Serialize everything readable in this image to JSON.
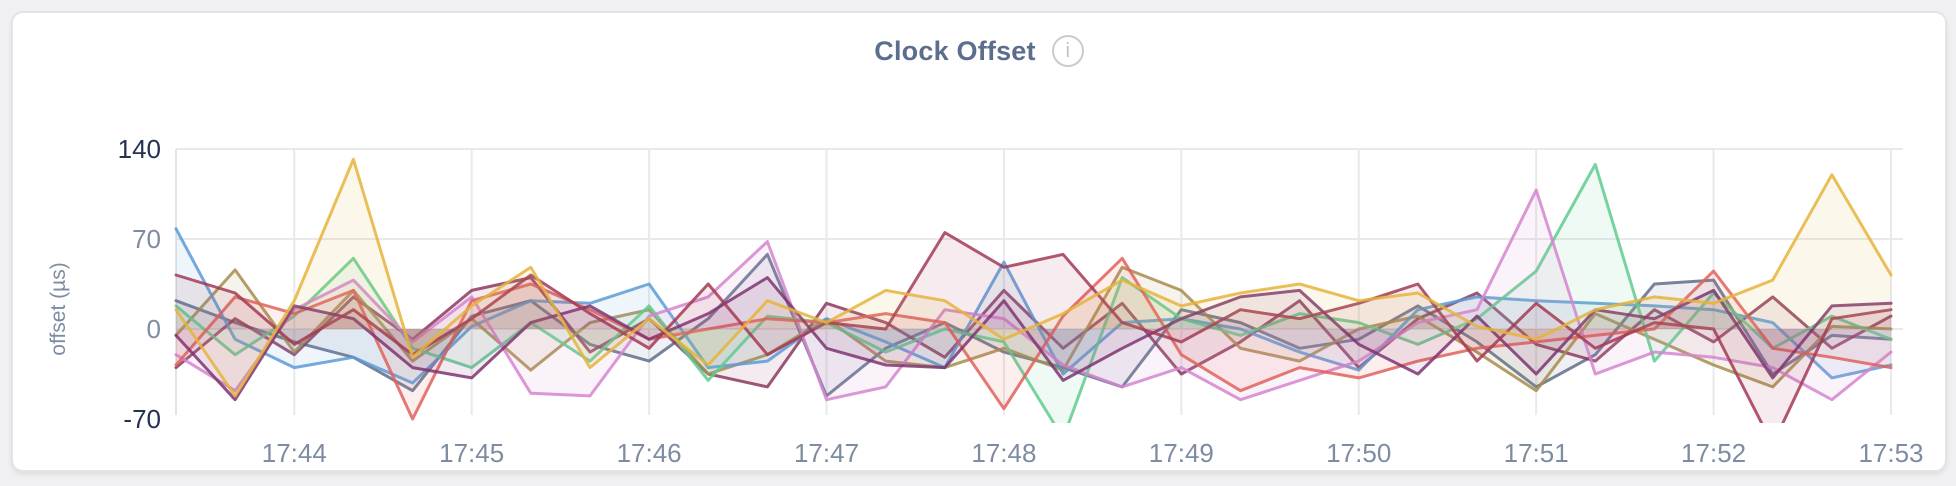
{
  "page": {
    "background": "#f0f0f2",
    "card_background": "#ffffff",
    "card_border": "#e4e4e7"
  },
  "header": {
    "title": "Clock Offset",
    "info_icon_glyph": "i"
  },
  "chart_data": {
    "type": "line",
    "title": "Clock Offset",
    "xlabel": "",
    "ylabel": "offset (µs)",
    "ylim": [
      -70,
      140
    ],
    "grid": true,
    "legend": "none",
    "x_start_time": "17:43:20",
    "x_end_time": "17:53:00",
    "x_interval_seconds": 20,
    "x_ticks": [
      {
        "t": 40,
        "label": "17:44"
      },
      {
        "t": 100,
        "label": "17:45"
      },
      {
        "t": 160,
        "label": "17:46"
      },
      {
        "t": 220,
        "label": "17:47"
      },
      {
        "t": 280,
        "label": "17:48"
      },
      {
        "t": 340,
        "label": "17:49"
      },
      {
        "t": 400,
        "label": "17:50"
      },
      {
        "t": 460,
        "label": "17:51"
      },
      {
        "t": 520,
        "label": "17:52"
      },
      {
        "t": 580,
        "label": "17:53"
      }
    ],
    "y_ticks": [
      {
        "v": 140,
        "label": "140",
        "strong": true,
        "gridline": true
      },
      {
        "v": 70,
        "label": "70",
        "strong": false,
        "gridline": true
      },
      {
        "v": 0,
        "label": "0",
        "strong": false,
        "gridline": true
      },
      {
        "v": -70,
        "label": "-70",
        "strong": true,
        "gridline": false
      }
    ],
    "axis_style": {
      "tick_color": "#7e8ca1",
      "tick_color_strong": "#233250",
      "grid_color": "#e9e9eb",
      "axis_line_color": "#e4e4e7",
      "line_opacity": 0.85,
      "fill_opacity": 0.1,
      "line_width": 3
    },
    "series": [
      {
        "name": "slate",
        "color": "#5f6e8a",
        "values": [
          22,
          5,
          -10,
          -22,
          -48,
          10,
          22,
          -12,
          -25,
          8,
          58,
          -52,
          -15,
          5,
          -18,
          -30,
          -45,
          15,
          5,
          -15,
          -8,
          18,
          -10,
          -45,
          -20,
          35,
          38,
          -35,
          -5,
          -8
        ]
      },
      {
        "name": "berry",
        "color": "#8c3a5f",
        "values": [
          -30,
          8,
          -20,
          25,
          -8,
          30,
          40,
          -18,
          8,
          -35,
          -45,
          20,
          5,
          -22,
          30,
          -15,
          20,
          -35,
          -10,
          22,
          -30,
          8,
          28,
          -12,
          -25,
          15,
          -10,
          25,
          -15,
          10
        ]
      },
      {
        "name": "olive",
        "color": "#a68c4d",
        "values": [
          -5,
          46,
          -18,
          30,
          -25,
          8,
          -32,
          5,
          15,
          -35,
          -20,
          8,
          -25,
          -30,
          -15,
          -32,
          48,
          30,
          -15,
          -25,
          0,
          10,
          -18,
          -48,
          12,
          -8,
          -28,
          -45,
          2,
          0
        ]
      },
      {
        "name": "blue",
        "color": "#5c9bd6",
        "values": [
          78,
          -8,
          -30,
          -22,
          -42,
          2,
          22,
          20,
          35,
          -30,
          -25,
          8,
          -10,
          -30,
          52,
          -35,
          5,
          8,
          0,
          -18,
          -32,
          15,
          25,
          22,
          20,
          18,
          15,
          5,
          -38,
          -28
        ]
      },
      {
        "name": "green",
        "color": "#5fcb8f",
        "values": [
          18,
          -20,
          10,
          55,
          -15,
          -30,
          5,
          -25,
          18,
          -40,
          10,
          5,
          -18,
          0,
          -10,
          -85,
          40,
          8,
          -5,
          12,
          5,
          -12,
          8,
          45,
          128,
          -25,
          28,
          -15,
          10,
          -8
        ]
      },
      {
        "name": "pink",
        "color": "#d585cf",
        "values": [
          -20,
          -48,
          15,
          38,
          -10,
          25,
          -50,
          -52,
          10,
          25,
          68,
          -55,
          -45,
          15,
          8,
          -28,
          -45,
          -30,
          -55,
          -40,
          -25,
          5,
          15,
          108,
          -35,
          -18,
          -22,
          -30,
          -55,
          -18
        ]
      },
      {
        "name": "red",
        "color": "#e0625c",
        "values": [
          -28,
          25,
          12,
          30,
          -70,
          22,
          35,
          15,
          -8,
          0,
          8,
          5,
          12,
          5,
          -62,
          10,
          55,
          -20,
          -48,
          -30,
          -38,
          -25,
          -15,
          -10,
          -5,
          0,
          45,
          -15,
          -22,
          -30
        ]
      },
      {
        "name": "plum",
        "color": "#7e3571",
        "values": [
          -5,
          -55,
          18,
          8,
          -30,
          -38,
          5,
          18,
          -8,
          12,
          40,
          -15,
          -28,
          -30,
          22,
          -40,
          -15,
          8,
          25,
          30,
          -12,
          -35,
          10,
          -35,
          15,
          8,
          30,
          -38,
          18,
          20
        ]
      },
      {
        "name": "wine",
        "color": "#a23b55",
        "values": [
          42,
          28,
          -12,
          15,
          -20,
          8,
          42,
          12,
          -15,
          35,
          -20,
          5,
          0,
          75,
          48,
          58,
          5,
          -10,
          15,
          8,
          20,
          35,
          -25,
          20,
          -15,
          5,
          0,
          -90,
          8,
          15
        ]
      },
      {
        "name": "gold",
        "color": "#e5b43c",
        "values": [
          15,
          -52,
          22,
          132,
          -22,
          18,
          48,
          -30,
          8,
          -28,
          22,
          5,
          30,
          22,
          -8,
          12,
          38,
          18,
          28,
          35,
          22,
          28,
          2,
          -8,
          15,
          25,
          20,
          38,
          120,
          42
        ]
      }
    ]
  }
}
